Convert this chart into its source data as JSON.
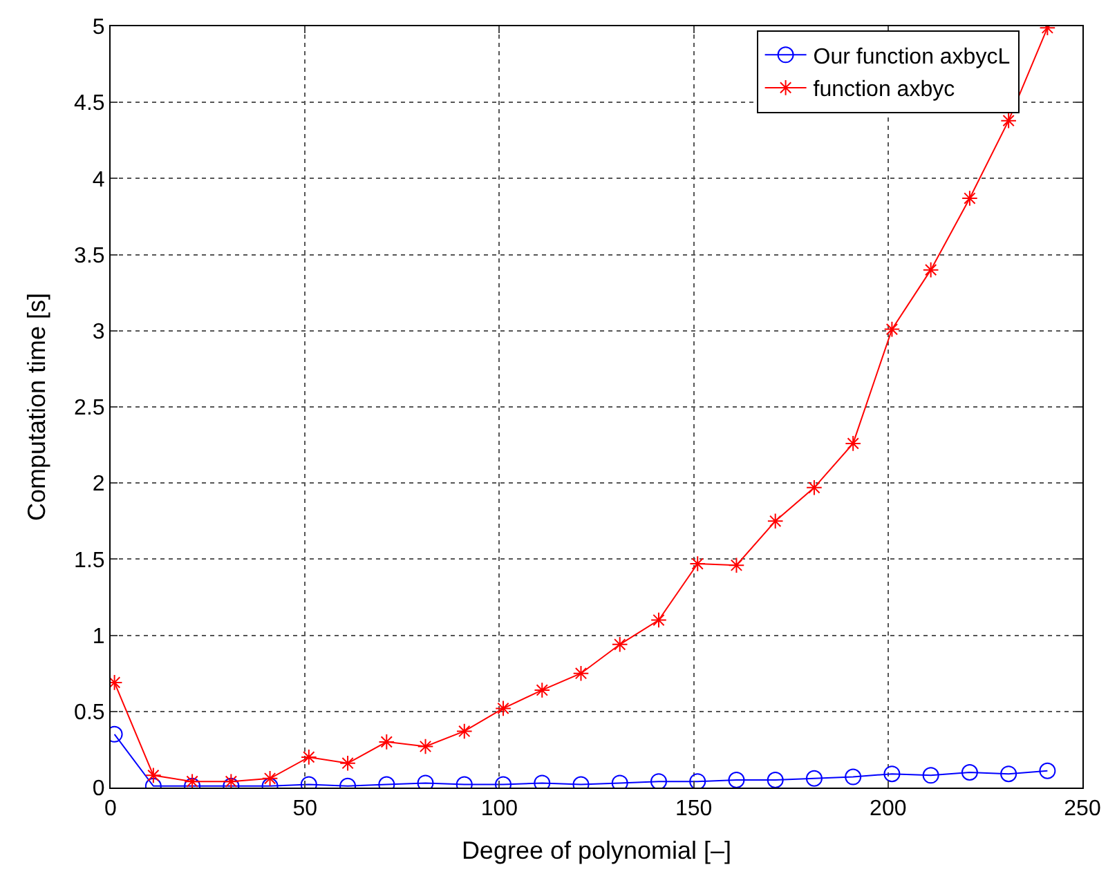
{
  "chart_data": {
    "type": "line",
    "xlabel": "Degree of polynomial [–]",
    "ylabel": "Computation time [s]",
    "x": [
      1,
      11,
      21,
      31,
      41,
      51,
      61,
      71,
      81,
      91,
      101,
      111,
      121,
      131,
      141,
      151,
      161,
      171,
      181,
      191,
      201,
      211,
      221,
      231,
      241
    ],
    "series": [
      {
        "name": "Our function axbycL",
        "color": "#0000ff",
        "marker": "circle",
        "values": [
          0.35,
          0.01,
          0.01,
          0.01,
          0.01,
          0.02,
          0.01,
          0.02,
          0.03,
          0.02,
          0.02,
          0.03,
          0.02,
          0.03,
          0.04,
          0.04,
          0.05,
          0.05,
          0.06,
          0.07,
          0.09,
          0.08,
          0.1,
          0.09,
          0.11
        ]
      },
      {
        "name": "function axbyc",
        "color": "#ff0000",
        "marker": "cross",
        "values": [
          0.69,
          0.08,
          0.04,
          0.04,
          0.06,
          0.2,
          0.16,
          0.3,
          0.27,
          0.37,
          0.52,
          0.64,
          0.75,
          0.94,
          1.1,
          1.47,
          1.46,
          1.75,
          1.97,
          2.26,
          3.01,
          3.4,
          3.87,
          4.38,
          4.99
        ]
      }
    ],
    "xlim": [
      0,
      250
    ],
    "xticks": [
      0,
      50,
      100,
      150,
      200,
      250
    ],
    "ylim": [
      0,
      5
    ],
    "yticks": [
      0,
      0.5,
      1,
      1.5,
      2,
      2.5,
      3,
      3.5,
      4,
      4.5,
      5
    ],
    "grid": true,
    "legend": "top right",
    "line_style": "solid"
  }
}
